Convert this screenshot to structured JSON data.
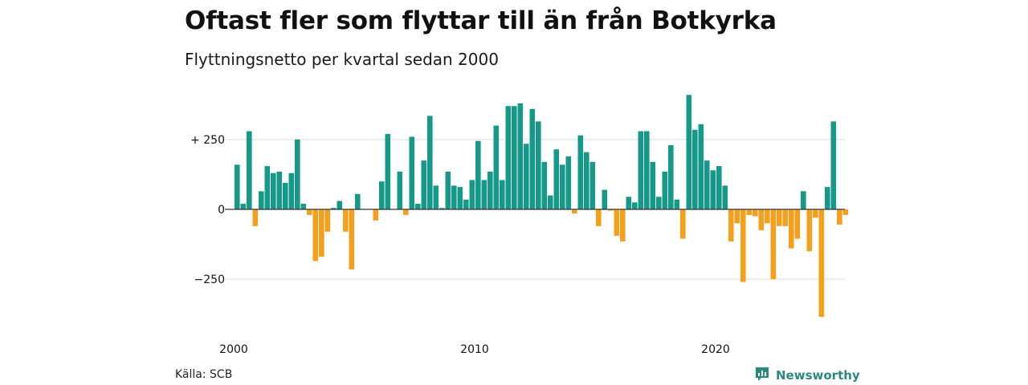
{
  "title": "Oftast fler som flyttar till än från Botkyrka",
  "subtitle": "Flyttningsnetto per kvartal sedan 2000",
  "source": "Källa: SCB",
  "brand": {
    "name": "Newsworthy",
    "icon": "newsworthy-logo-icon"
  },
  "colors": {
    "positive": "#17998a",
    "negative": "#f5a01c",
    "grid": "#d9d9d9",
    "zero_line": "#333333"
  },
  "chart_data": {
    "type": "bar",
    "title": "Oftast fler som flyttar till än från Botkyrka",
    "subtitle": "Flyttningsnetto per kvartal sedan 2000",
    "xlabel": "",
    "ylabel": "",
    "x_start_year": 2000,
    "periods_per_year": 4,
    "x_ticks": [
      {
        "value": 2000,
        "label": "2000"
      },
      {
        "value": 2010,
        "label": "2010"
      },
      {
        "value": 2020,
        "label": "2020"
      }
    ],
    "y_ticks": [
      {
        "value": 250,
        "label": "+ 250"
      },
      {
        "value": 0,
        "label": "0"
      },
      {
        "value": -250,
        "label": "−250"
      }
    ],
    "ylim": [
      -430,
      430
    ],
    "grid": true,
    "values": [
      160,
      20,
      280,
      -60,
      65,
      155,
      130,
      135,
      95,
      130,
      250,
      20,
      -20,
      -185,
      -170,
      -80,
      5,
      30,
      -80,
      -215,
      55,
      0,
      0,
      -40,
      100,
      270,
      0,
      135,
      -20,
      260,
      20,
      175,
      335,
      85,
      5,
      135,
      85,
      80,
      35,
      105,
      245,
      105,
      135,
      300,
      105,
      370,
      370,
      380,
      235,
      360,
      315,
      170,
      50,
      215,
      160,
      190,
      -15,
      265,
      205,
      170,
      -60,
      70,
      -5,
      -95,
      -115,
      45,
      25,
      280,
      280,
      170,
      45,
      135,
      230,
      35,
      -105,
      410,
      285,
      305,
      175,
      140,
      155,
      85,
      -115,
      -50,
      -260,
      -20,
      -25,
      -75,
      -50,
      -250,
      -60,
      -60,
      -140,
      -105,
      65,
      -150,
      -30,
      -385,
      80,
      315,
      -55,
      -20
    ]
  }
}
